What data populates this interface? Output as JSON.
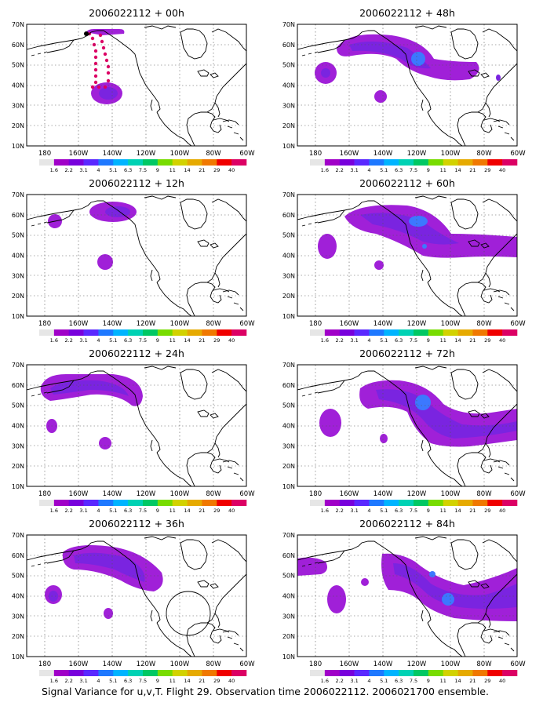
{
  "figure": {
    "caption": "Signal Variance for u,v,T. Flight 29. Observation time 2006022112. 2006021700 ensemble.",
    "lat_labels": [
      "70N",
      "60N",
      "50N",
      "40N",
      "30N",
      "20N",
      "10N"
    ],
    "lon_labels": [
      "180",
      "160W",
      "140W",
      "120W",
      "100W",
      "80W",
      "60W"
    ],
    "colorbar": {
      "labels": [
        "1.6",
        "2.2",
        "3.1",
        "4",
        "5.1",
        "6.3",
        "7.5",
        "9",
        "11",
        "14",
        "21",
        "29",
        "40"
      ],
      "colors": [
        "#a000c8",
        "#7800dc",
        "#5a28ff",
        "#1e78ff",
        "#00b4ff",
        "#00d2b4",
        "#00c864",
        "#78dc00",
        "#d2d200",
        "#e6aa00",
        "#f07800",
        "#f00000",
        "#dc0064"
      ]
    },
    "fill_colors": {
      "outer": "#a020d8",
      "middle": "#7a24e0",
      "inner": "#3c78ff",
      "obs_marker": "#dc0064"
    },
    "panels": [
      {
        "title": "2006022112 + 00h",
        "forecast_hour": 0
      },
      {
        "title": "2006022112 + 12h",
        "forecast_hour": 12
      },
      {
        "title": "2006022112 + 24h",
        "forecast_hour": 24
      },
      {
        "title": "2006022112 + 36h",
        "forecast_hour": 36
      },
      {
        "title": "2006022112 + 48h",
        "forecast_hour": 48
      },
      {
        "title": "2006022112 + 60h",
        "forecast_hour": 60
      },
      {
        "title": "2006022112 + 72h",
        "forecast_hour": 72
      },
      {
        "title": "2006022112 + 84h",
        "forecast_hour": 84
      }
    ]
  }
}
